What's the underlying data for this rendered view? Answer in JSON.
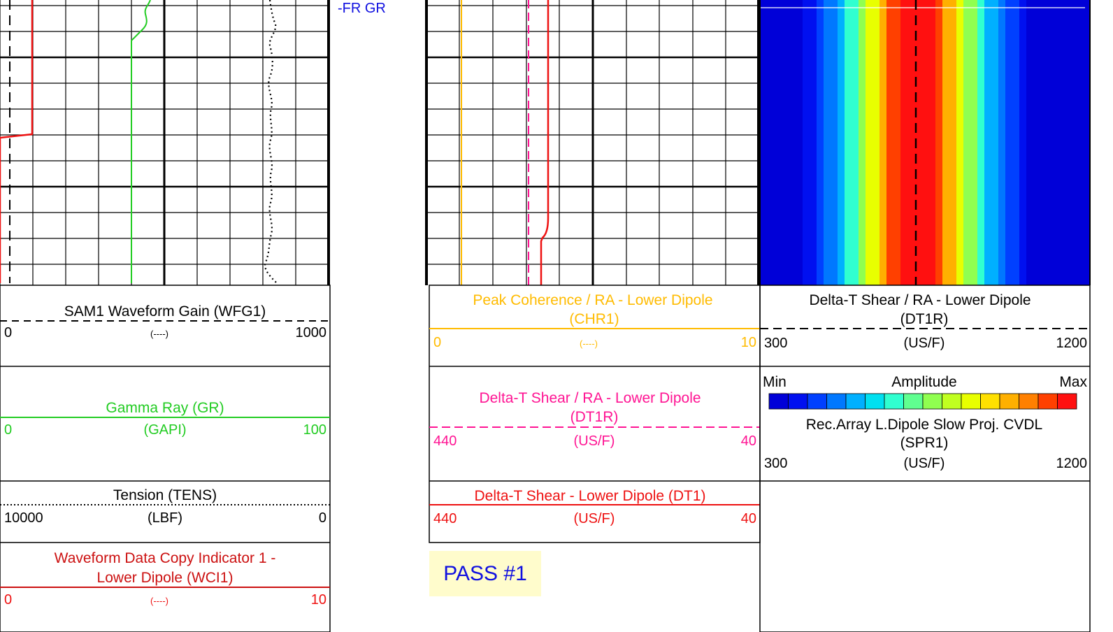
{
  "colors": {
    "black": "#000000",
    "green": "#22cc22",
    "red": "#ee1111",
    "dark_red": "#cc1111",
    "orange": "#ffbb00",
    "magenta": "#ff1493",
    "blue_text": "#1010e0",
    "pass_bg": "#fffccc"
  },
  "track_label": "-FR GR",
  "pass_label": "PASS #1",
  "chart_data": [
    {
      "type": "line",
      "description_track": "left-track",
      "series": [
        {
          "name": "WFG1",
          "curve": "step"
        },
        {
          "name": "GR",
          "curve": "constant-then-wiggle"
        },
        {
          "name": "TENS",
          "curve": "wiggle"
        },
        {
          "name": "WCI1",
          "curve": "step"
        }
      ]
    },
    {
      "type": "line",
      "description_track": "center-track",
      "series": [
        {
          "name": "CHR1",
          "curve": "constant"
        },
        {
          "name": "DT1R",
          "curve": "constant"
        },
        {
          "name": "DT1",
          "curve": "near-constant"
        }
      ]
    },
    {
      "type": "heatmap",
      "description_track": "right-track",
      "x_range": [
        300,
        1200
      ],
      "colorscale": [
        "#0000d8",
        "#0010f0",
        "#0040ff",
        "#0078ff",
        "#00b0ff",
        "#00e0f0",
        "#30ffd0",
        "#60ff90",
        "#90ff50",
        "#c0ff20",
        "#e8ff00",
        "#ffe000",
        "#ffb000",
        "#ff8000",
        "#ff4000",
        "#ff1010"
      ]
    }
  ],
  "legends": {
    "wfg1": {
      "title": "SAM1 Waveform Gain (WFG1)",
      "left": "0",
      "unit": "(----)",
      "right": "1000"
    },
    "gr": {
      "title": "Gamma Ray (GR)",
      "left": "0",
      "unit": "(GAPI)",
      "right": "100"
    },
    "tens": {
      "title": "Tension (TENS)",
      "left": "10000",
      "unit": "(LBF)",
      "right": "0"
    },
    "wci1": {
      "title_line1": "Waveform Data Copy Indicator 1 -",
      "title_line2": "Lower Dipole (WCI1)",
      "left": "0",
      "unit": "(----)",
      "right": "10"
    },
    "chr1": {
      "title_line1": "Peak Coherence / RA - Lower Dipole",
      "title_line2": "(CHR1)",
      "left": "0",
      "unit": "(----)",
      "right": "10"
    },
    "dt1r_mid": {
      "title_line1": "Delta-T Shear / RA - Lower Dipole",
      "title_line2": "(DT1R)",
      "left": "440",
      "unit": "(US/F)",
      "right": "40"
    },
    "dt1": {
      "title": "Delta-T Shear - Lower Dipole (DT1)",
      "left": "440",
      "unit": "(US/F)",
      "right": "40"
    },
    "dt1r_right": {
      "title_line1": "Delta-T Shear / RA - Lower Dipole",
      "title_line2": "(DT1R)",
      "left": "300",
      "unit": "(US/F)",
      "right": "1200"
    },
    "amplitude": {
      "min": "Min",
      "title": "Amplitude",
      "max": "Max"
    },
    "spr1": {
      "title_line1": "Rec.Array L.Dipole Slow Proj. CVDL",
      "title_line2": "(SPR1)",
      "left": "300",
      "unit": "(US/F)",
      "right": "1200"
    }
  }
}
